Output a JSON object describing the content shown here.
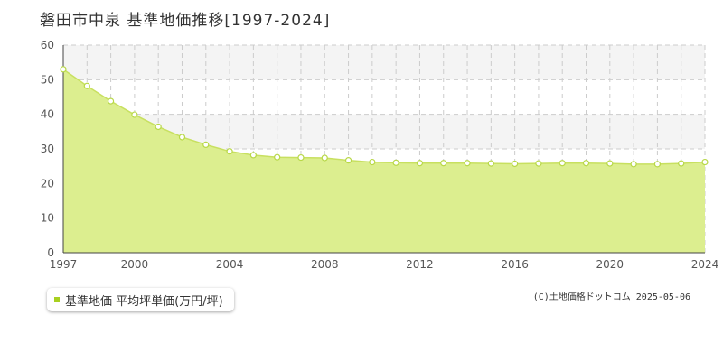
{
  "title": "磐田市中泉 基準地価推移[1997-2024]",
  "legend": {
    "label": "基準地価 平均坪単価(万円/坪)"
  },
  "credit": "(C)土地価格ドットコム 2025-05-06",
  "colors": {
    "fill": "#dcee8f",
    "line": "#c8e060",
    "marker_fill": "#ffffff",
    "marker_stroke": "#b8d848",
    "legend_marker": "#a8d020",
    "grid": "#cccccc",
    "band": "#f4f4f4"
  },
  "chart_data": {
    "type": "area",
    "title": "磐田市中泉 基準地価推移[1997-2024]",
    "xlabel": "",
    "ylabel": "",
    "xlim": [
      1997,
      2024
    ],
    "ylim": [
      0,
      60
    ],
    "y_ticks": [
      0,
      10,
      20,
      30,
      40,
      50,
      60
    ],
    "x_tick_labels": [
      1997,
      2000,
      2004,
      2008,
      2012,
      2016,
      2020,
      2024
    ],
    "grid": true,
    "legend_position": "bottom-left",
    "series": [
      {
        "name": "基準地価 平均坪単価(万円/坪)",
        "x": [
          1997,
          1998,
          1999,
          2000,
          2001,
          2002,
          2003,
          2004,
          2005,
          2006,
          2007,
          2008,
          2009,
          2010,
          2011,
          2012,
          2013,
          2014,
          2015,
          2016,
          2017,
          2018,
          2019,
          2020,
          2021,
          2022,
          2023,
          2024
        ],
        "values": [
          53.0,
          48.2,
          43.8,
          39.9,
          36.4,
          33.4,
          31.2,
          29.3,
          28.2,
          27.6,
          27.5,
          27.4,
          26.7,
          26.2,
          26.0,
          25.9,
          25.9,
          25.9,
          25.8,
          25.7,
          25.8,
          25.9,
          25.9,
          25.8,
          25.6,
          25.6,
          25.8,
          26.2
        ]
      }
    ]
  }
}
